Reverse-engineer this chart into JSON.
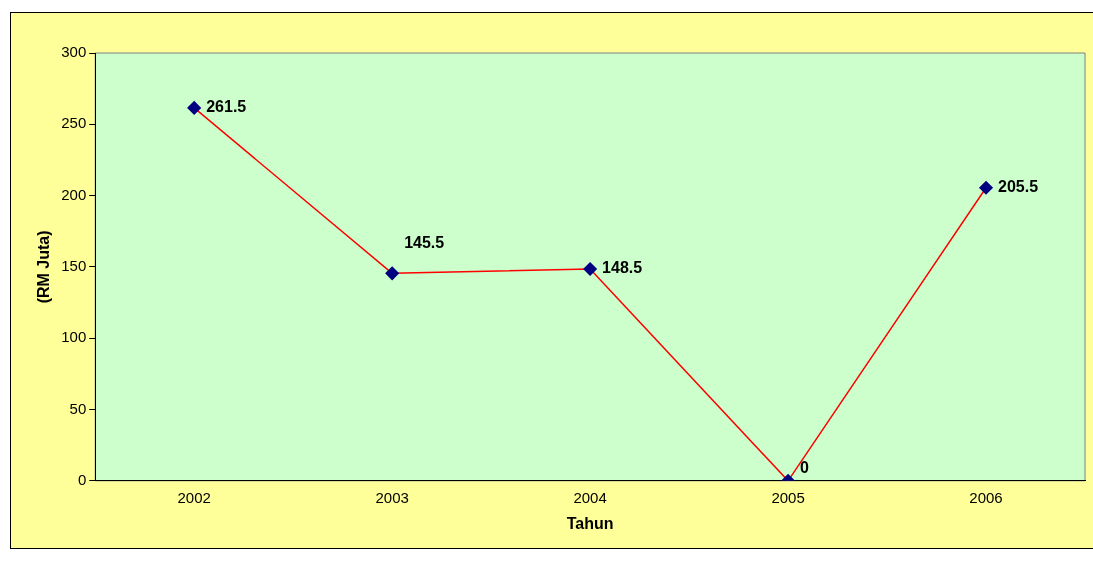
{
  "chart_data": {
    "type": "line",
    "xlabel": "Tahun",
    "ylabel": "(RM Juta)",
    "categories": [
      "2002",
      "2003",
      "2004",
      "2005",
      "2006"
    ],
    "series": [
      {
        "color": "#ff0000",
        "values": [
          261.5,
          145.5,
          148.5,
          0,
          205.5
        ]
      }
    ],
    "ylim": [
      0,
      300
    ],
    "yticks": [
      0,
      50,
      100,
      150,
      200,
      250,
      300
    ],
    "grid": false,
    "legend": false,
    "marker": "diamond",
    "line_style": "solid",
    "data_labels": true
  }
}
